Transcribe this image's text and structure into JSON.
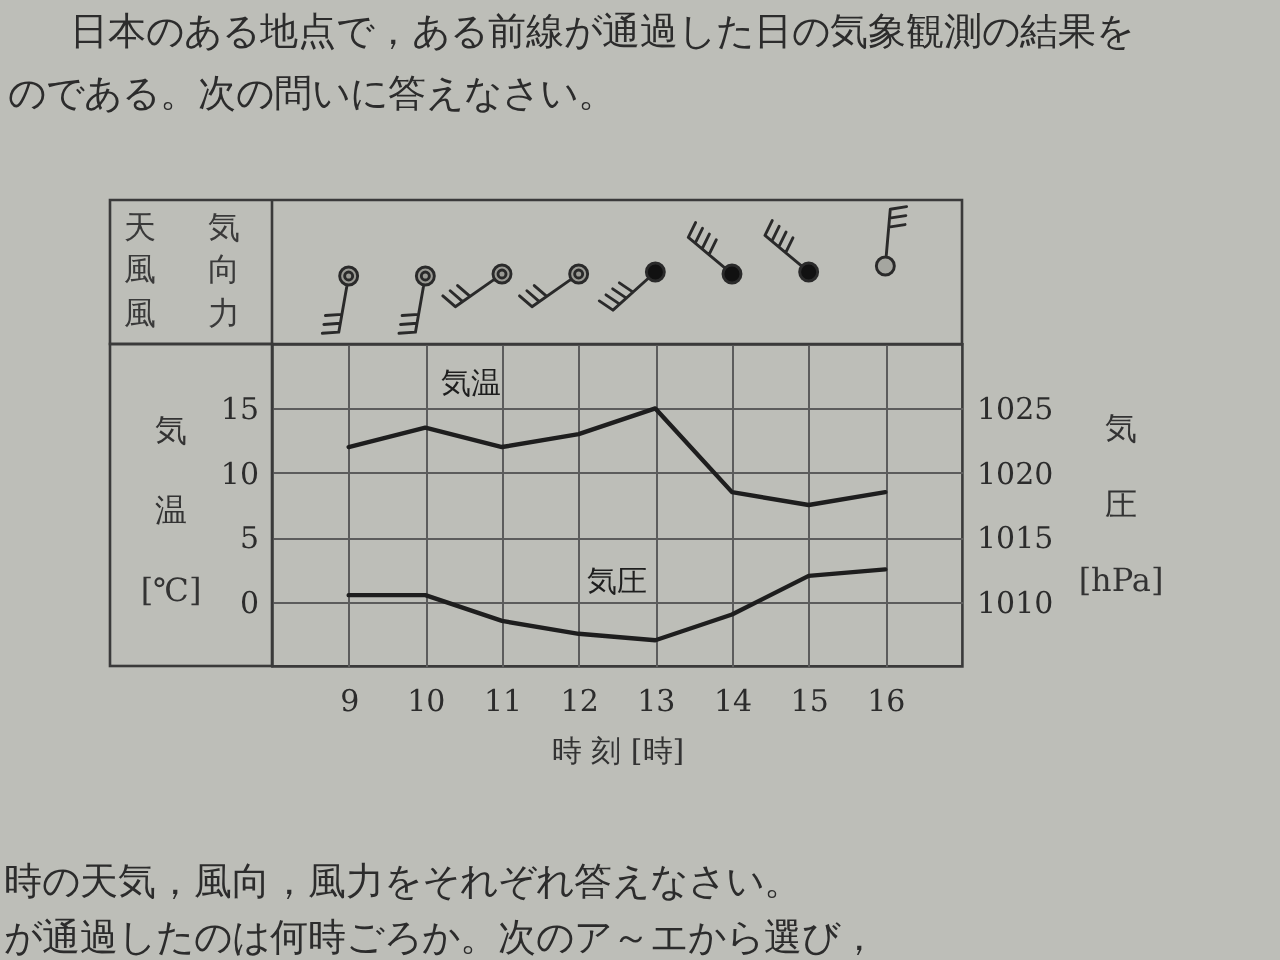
{
  "chart_data": {
    "type": "line",
    "title": "日本のある地点で，ある前線が通過した日の気象観測の結果を",
    "subtitle": "のである。次の問いに答えなさい。",
    "xlabel": "時 刻 [時]",
    "ylabel": "気温 [℃]",
    "y2label": "気圧 [hPa]",
    "x": [
      9,
      10,
      11,
      12,
      13,
      14,
      15,
      16
    ],
    "xlim": [
      8,
      17
    ],
    "xticks": [
      9,
      10,
      11,
      12,
      13,
      14,
      15,
      16
    ],
    "ylim": [
      -5,
      20
    ],
    "yticks": [
      0,
      5,
      10,
      15
    ],
    "y2lim": [
      1005,
      1030
    ],
    "y2ticks": [
      1010,
      1015,
      1020,
      1025
    ],
    "grid": true,
    "series": [
      {
        "name": "気温",
        "color": "#1e1e1e",
        "values": [
          12,
          13.5,
          12,
          13,
          15,
          8.5,
          7.5,
          8.5
        ]
      },
      {
        "name": "気圧",
        "color": "#1e1e1e",
        "axis": "y2",
        "values": [
          1010.5,
          1010.5,
          1008.5,
          1007.5,
          1007,
          1009,
          1012,
          1012.5
        ]
      }
    ],
    "annotations": [
      "天気",
      "風向",
      "風力",
      "時の天気，風向，風力をそれぞれ答えなさい。",
      "が通過したのは何時ごろか。次のア～エから選び，"
    ]
  }
}
